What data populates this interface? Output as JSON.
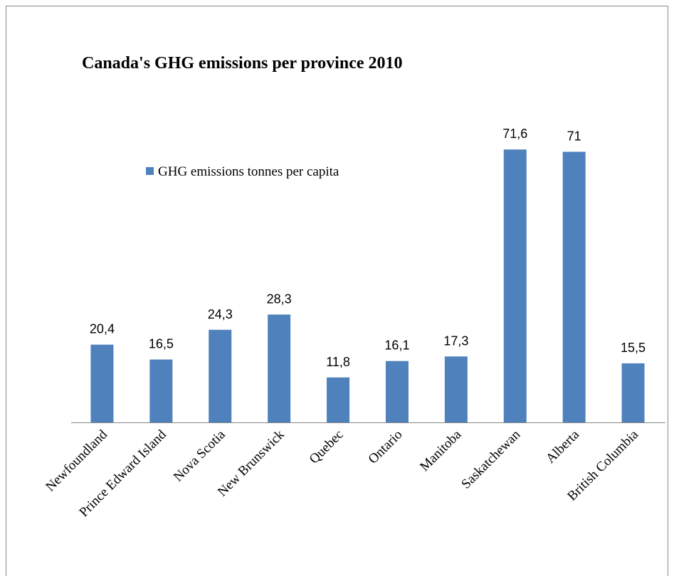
{
  "chart_data": {
    "type": "bar",
    "title": "Canada's GHG emissions per province 2010",
    "categories": [
      "Newfoundland",
      "Prince Edward Island",
      "Nova Scotia",
      "New Brunswick",
      "Quebec",
      "Ontario",
      "Manitoba",
      "Saskatchewan",
      "Alberta",
      "British Columbia"
    ],
    "series": [
      {
        "name": "GHG emissions tonnes per capita",
        "color": "#4f81bd",
        "values": [
          20.4,
          16.5,
          24.3,
          28.3,
          11.8,
          16.1,
          17.3,
          71.6,
          71,
          15.5
        ],
        "value_labels": [
          "20,4",
          "16,5",
          "24,3",
          "28,3",
          "11,8",
          "16,1",
          "17,3",
          "71,6",
          "71",
          "15,5"
        ]
      }
    ],
    "legend": "upper left"
  }
}
